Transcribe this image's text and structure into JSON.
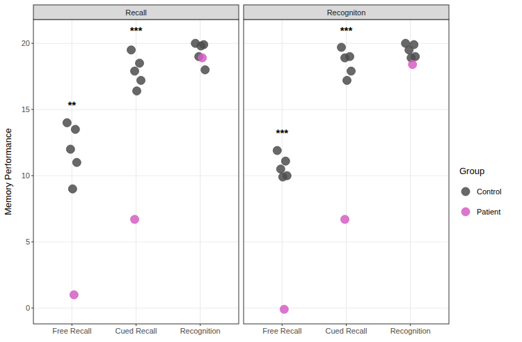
{
  "chart_data": [
    {
      "type": "scatter",
      "title": "Recall",
      "y_label": "Memory Performance",
      "categories": [
        "Free Recall",
        "Cued Recall",
        "Recognition"
      ],
      "ylim": [
        -1.2,
        21.8
      ],
      "yticks": [
        0,
        5,
        10,
        15,
        20
      ],
      "grid": true,
      "series": [
        {
          "name": "Control",
          "color": "#4d4d4d",
          "values": [
            [
              14,
              13.5,
              12,
              11,
              9
            ],
            [
              19.5,
              18.5,
              17.9,
              17.2,
              16.4
            ],
            [
              20,
              19.9,
              19,
              18,
              19.8
            ]
          ]
        },
        {
          "name": "Patient",
          "color": "#d35fc4",
          "values": [
            [
              1
            ],
            [
              6.7
            ],
            [
              18.9
            ]
          ]
        }
      ],
      "annotations": [
        {
          "category": 0,
          "y": 15.4,
          "text": "**"
        },
        {
          "category": 1,
          "y": 21,
          "text": "***"
        }
      ]
    },
    {
      "type": "scatter",
      "title": "Recogniton",
      "categories": [
        "Free Recall",
        "Cued Recall",
        "Recognition"
      ],
      "ylim": [
        -1.2,
        21.8
      ],
      "yticks": [
        0,
        5,
        10,
        15,
        20
      ],
      "grid": true,
      "tick_labels": "x",
      "legend": "right",
      "legend_title": "Group",
      "series": [
        {
          "name": "Control",
          "color": "#4d4d4d",
          "values": [
            [
              11.9,
              11.1,
              10.5,
              10,
              9.9
            ],
            [
              19.7,
              19,
              18.9,
              17.9,
              17.2
            ],
            [
              20,
              19.9,
              19.5,
              19,
              18.9
            ]
          ]
        },
        {
          "name": "Patient",
          "color": "#d35fc4",
          "values": [
            [
              -0.1
            ],
            [
              6.7
            ],
            [
              18.4
            ]
          ]
        }
      ],
      "annotations": [
        {
          "category": 0,
          "y": 13.3,
          "text": "***"
        },
        {
          "category": 1,
          "y": 21,
          "text": "***"
        }
      ]
    }
  ]
}
